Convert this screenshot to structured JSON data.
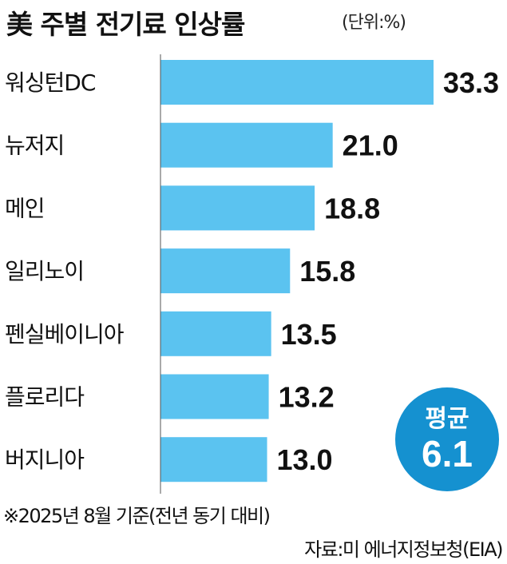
{
  "chart_data": {
    "type": "bar",
    "orientation": "horizontal",
    "title": "美 주별 전기료 인상률",
    "unit": "(단위:%)",
    "categories": [
      "워싱턴DC",
      "뉴저지",
      "메인",
      "일리노이",
      "펜실베이니아",
      "플로리다",
      "버지니아"
    ],
    "values": [
      33.3,
      21.0,
      18.8,
      15.8,
      13.5,
      13.2,
      13.0
    ],
    "value_labels": [
      "33.3",
      "21.0",
      "18.8",
      "15.8",
      "13.5",
      "13.2",
      "13.0"
    ],
    "xlim": [
      0,
      35
    ],
    "bar_color": "#5bc3f0",
    "average": {
      "label": "평균",
      "value": "6.1",
      "color": "#1591d0"
    },
    "note": "※2025년 8월 기준(전년 동기 대비)",
    "source": "자료:미 에너지정보청(EIA)"
  }
}
